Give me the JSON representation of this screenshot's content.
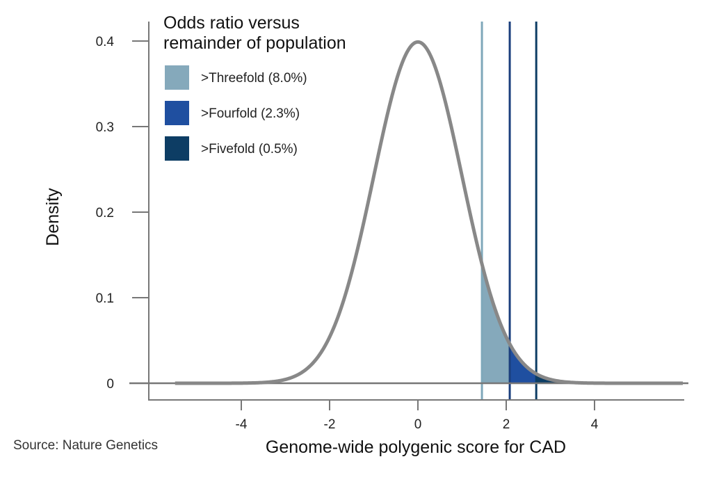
{
  "chart_data": {
    "type": "area",
    "title": "",
    "xlabel": "Genome-wide polygenic score for CAD",
    "ylabel": "Density",
    "xlim": [
      -6.0,
      6.0
    ],
    "ylim": [
      -0.02,
      0.42
    ],
    "x_ticks": [
      -4,
      -2,
      0,
      2,
      4
    ],
    "x_tick_labels": [
      "-4",
      "-2",
      "0",
      "2",
      "4"
    ],
    "y_ticks": [
      0,
      0.1,
      0.2,
      0.3,
      0.4
    ],
    "y_tick_labels": [
      "0",
      "0.1",
      "0.2",
      "0.3",
      "0.4"
    ],
    "grid": false,
    "curve": {
      "name": "Standard normal density",
      "mean": 0,
      "sd": 1,
      "x_range": [
        -5.5,
        6.0
      ],
      "color": "#888888"
    },
    "thresholds": [
      {
        "name": ">Threefold (8.0%)",
        "x": 1.45,
        "fill": "#85a9bb",
        "line": "#7fa8ba"
      },
      {
        "name": ">Fourfold (2.3%)",
        "x": 2.08,
        "fill": "#1f4fa0",
        "line": "#1b3f7d"
      },
      {
        "name": ">Fivefold (0.5%)",
        "x": 2.68,
        "fill": "#0d3d64",
        "line": "#0d3d64"
      }
    ],
    "legend": {
      "title_lines": [
        "Odds ratio versus",
        "remainder of population"
      ],
      "position": "top-left",
      "entries": [
        {
          "label": ">Threefold (8.0%)",
          "color": "#85a9bb"
        },
        {
          "label": ">Fourfold (2.3%)",
          "color": "#1f4fa0"
        },
        {
          "label": ">Fivefold (0.5%)",
          "color": "#0d3d64"
        }
      ]
    }
  },
  "source": "Source: Nature Genetics"
}
